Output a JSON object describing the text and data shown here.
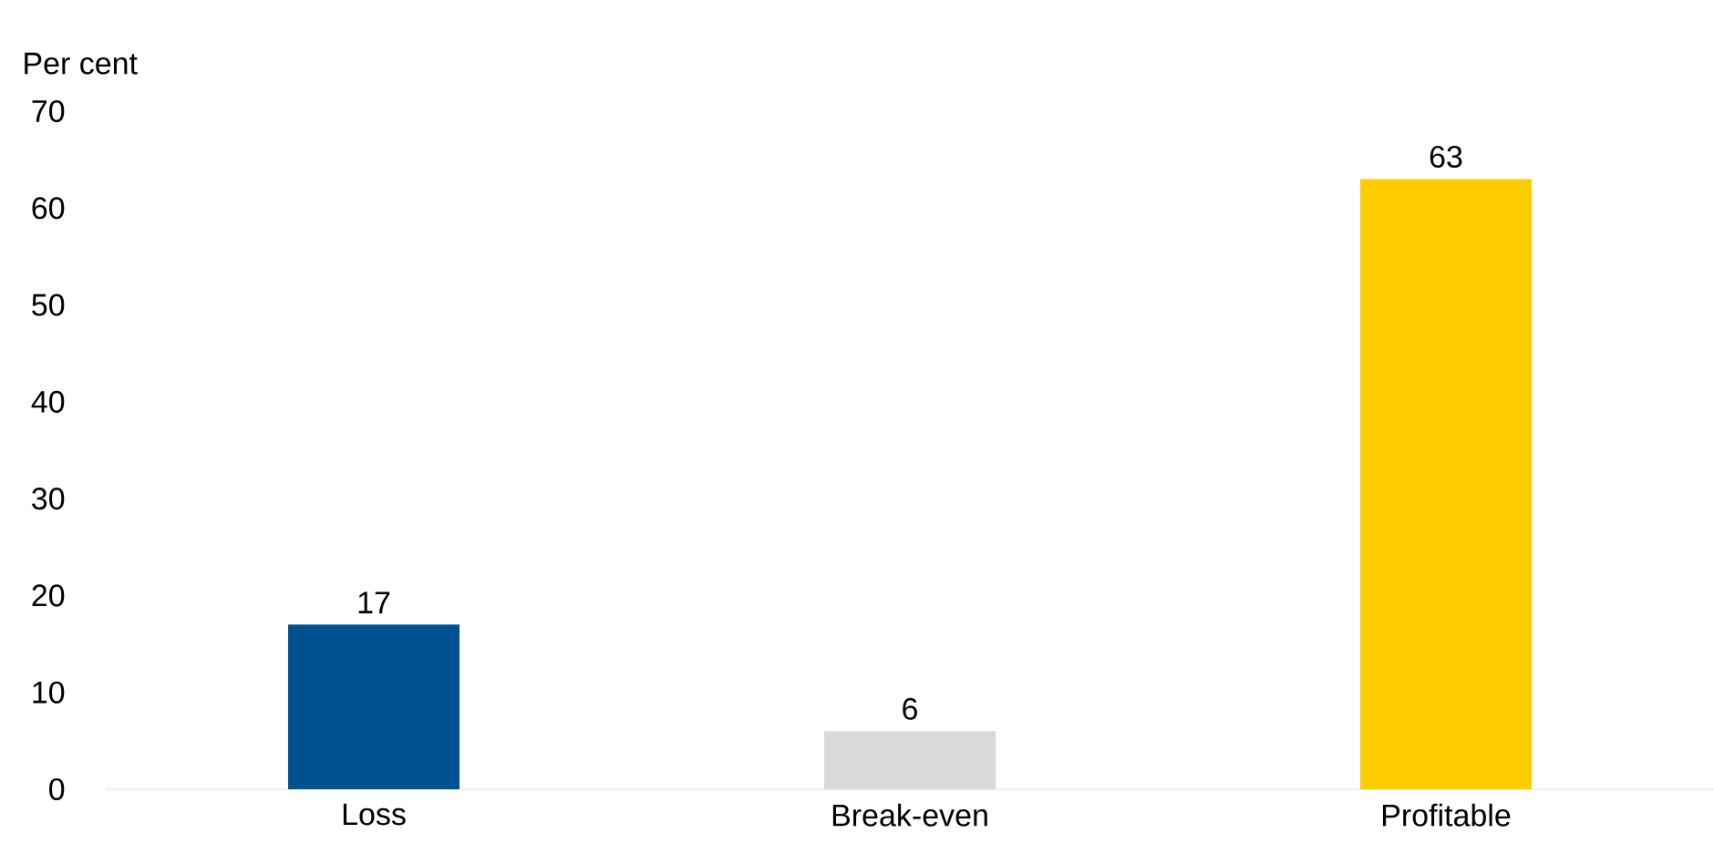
{
  "chart_data": {
    "type": "bar",
    "ylabel": "Per cent",
    "categories": [
      "Loss",
      "Break-even",
      "Profitable"
    ],
    "values": [
      17,
      6,
      63
    ],
    "colors": [
      "#00528f",
      "#d9d9d9",
      "#ffcc00"
    ],
    "ylim": [
      0,
      70
    ],
    "yticks": [
      0,
      10,
      20,
      30,
      40,
      50,
      60,
      70
    ],
    "data_labels": true
  }
}
